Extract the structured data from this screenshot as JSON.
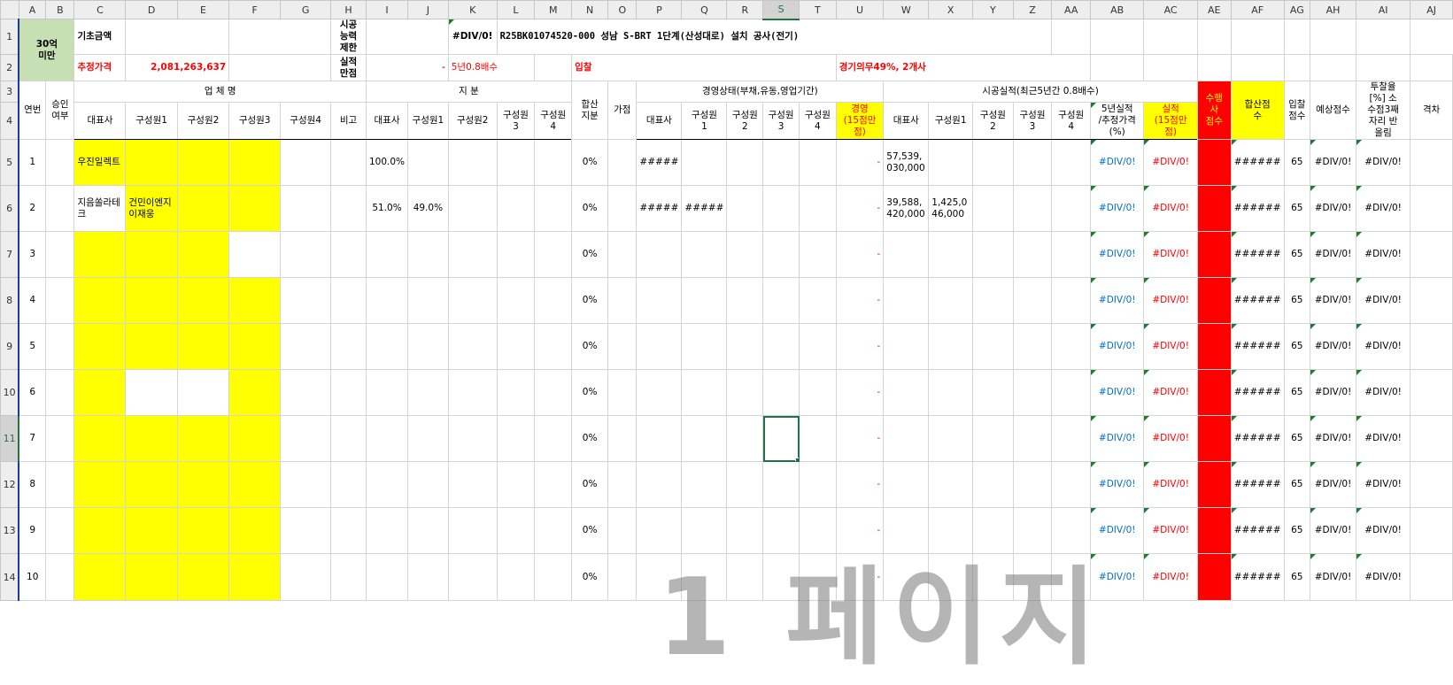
{
  "columns": [
    "A",
    "B",
    "C",
    "D",
    "E",
    "F",
    "G",
    "H",
    "I",
    "J",
    "K",
    "L",
    "M",
    "N",
    "O",
    "P",
    "Q",
    "R",
    "S",
    "T",
    "U",
    "W",
    "X",
    "Y",
    "Z",
    "AA",
    "AB",
    "AC",
    "AE",
    "AF",
    "AG",
    "AH",
    "AI",
    "AJ"
  ],
  "row_numbers": [
    "1",
    "2",
    "3",
    "4",
    "5",
    "6",
    "7",
    "8",
    "9",
    "10",
    "11",
    "12",
    "13",
    "14"
  ],
  "header": {
    "category": "30억\n미만",
    "base_amount_label": "기초금액",
    "estimated_price_label": "추정가격",
    "estimated_price": "2,081,263,637",
    "capacity_label": "시공\n능력\n제한",
    "perf_full_label": "실적\n만점",
    "perf_dash": "-",
    "div_error": "#DIV/0!",
    "five_year_label": "5년0.8배수",
    "project_title": "R25BK01074520-000 성남 S-BRT 1단계(산성대로) 설치 공사(전기)",
    "bid_label": "입찰",
    "regional_label": "경기의무49%, 2개사"
  },
  "groups": {
    "company": "업  체  명",
    "share": "지  분",
    "management": "경영상태(부채,유동,영업기간)",
    "performance": "시공실적(최근5년간 0.8배수)"
  },
  "col_labels": {
    "seq": "연번",
    "approval": "승인\n여부",
    "rep": "대표사",
    "m1": "구성원1",
    "m2": "구성원2",
    "m3": "구성원3",
    "m4": "구성원4",
    "note": "비고",
    "share_rep": "대표사",
    "share_m1": "구성원1",
    "share_m2": "구성원2",
    "share_m3": "구성원\n3",
    "share_m4": "구성원\n4",
    "sum_share": "합산\n지분",
    "bonus": "가점",
    "mg_rep": "대표사",
    "mg_m1": "구성원\n1",
    "mg_m2": "구성원\n2",
    "mg_m3": "구성원\n3",
    "mg_m4": "구성원\n4",
    "mg_score": "경영\n(15점만\n점)",
    "pf_rep": "대표사",
    "pf_m1": "구성원1",
    "pf_m2": "구성원\n2",
    "pf_m3": "구성원\n3",
    "pf_m4": "구성원\n4",
    "pf_ratio": "5년실적\n/추정가격\n(%)",
    "pf_score": "실적\n(15점만\n점)",
    "exec_score": "수행\n사\n점수",
    "sum_score": "합산점\n수",
    "bid_score": "입찰\n점수",
    "expected": "예상점수",
    "bid_rate": "투찰율\n[%] 소\n수점3째\n자리 반\n올림",
    "diff": "격차"
  },
  "rows": [
    {
      "seq": "1",
      "rep": "우진일렉트",
      "m1": "",
      "share_rep": "100.0%",
      "share_m1": "",
      "sum": "0%",
      "mg_rep": "#####",
      "mg_m1": "",
      "mg_score": "-",
      "pf_rep": "57,539,\n030,000",
      "pf_m1": "",
      "ratio": "#DIV/0!",
      "score": "#DIV/0!",
      "sumscore": "######",
      "bid": "65",
      "expected": "#DIV/0!",
      "rate": "#DIV/0!"
    },
    {
      "seq": "2",
      "rep": "지음쏠라테크",
      "m1": "건민이엔지\n이재웅",
      "share_rep": "51.0%",
      "share_m1": "49.0%",
      "sum": "0%",
      "mg_rep": "#####",
      "mg_m1": "#####",
      "mg_score": "-",
      "pf_rep": "39,588,\n420,000",
      "pf_m1": "1,425,0\n46,000",
      "ratio": "#DIV/0!",
      "score": "#DIV/0!",
      "sumscore": "######",
      "bid": "65",
      "expected": "#DIV/0!",
      "rate": "#DIV/0!"
    },
    {
      "seq": "3",
      "rep": "",
      "m1": "",
      "share_rep": "",
      "share_m1": "",
      "sum": "0%",
      "mg_rep": "",
      "mg_m1": "",
      "mg_score": "-",
      "pf_rep": "",
      "pf_m1": "",
      "ratio": "#DIV/0!",
      "score": "#DIV/0!",
      "sumscore": "######",
      "bid": "65",
      "expected": "#DIV/0!",
      "rate": "#DIV/0!"
    },
    {
      "seq": "4",
      "rep": "",
      "m1": "",
      "share_rep": "",
      "share_m1": "",
      "sum": "0%",
      "mg_rep": "",
      "mg_m1": "",
      "mg_score": "-",
      "pf_rep": "",
      "pf_m1": "",
      "ratio": "#DIV/0!",
      "score": "#DIV/0!",
      "sumscore": "######",
      "bid": "65",
      "expected": "#DIV/0!",
      "rate": "#DIV/0!"
    },
    {
      "seq": "5",
      "rep": "",
      "m1": "",
      "share_rep": "",
      "share_m1": "",
      "sum": "0%",
      "mg_rep": "",
      "mg_m1": "",
      "mg_score": "-",
      "pf_rep": "",
      "pf_m1": "",
      "ratio": "#DIV/0!",
      "score": "#DIV/0!",
      "sumscore": "######",
      "bid": "65",
      "expected": "#DIV/0!",
      "rate": "#DIV/0!"
    },
    {
      "seq": "6",
      "rep": "",
      "m1": "",
      "share_rep": "",
      "share_m1": "",
      "sum": "0%",
      "mg_rep": "",
      "mg_m1": "",
      "mg_score": "-",
      "pf_rep": "",
      "pf_m1": "",
      "ratio": "#DIV/0!",
      "score": "#DIV/0!",
      "sumscore": "######",
      "bid": "65",
      "expected": "#DIV/0!",
      "rate": "#DIV/0!"
    },
    {
      "seq": "7",
      "rep": "",
      "m1": "",
      "share_rep": "",
      "share_m1": "",
      "sum": "0%",
      "mg_rep": "",
      "mg_m1": "",
      "mg_score": "-",
      "pf_rep": "",
      "pf_m1": "",
      "ratio": "#DIV/0!",
      "score": "#DIV/0!",
      "sumscore": "######",
      "bid": "65",
      "expected": "#DIV/0!",
      "rate": "#DIV/0!"
    },
    {
      "seq": "8",
      "rep": "",
      "m1": "",
      "share_rep": "",
      "share_m1": "",
      "sum": "0%",
      "mg_rep": "",
      "mg_m1": "",
      "mg_score": "-",
      "pf_rep": "",
      "pf_m1": "",
      "ratio": "#DIV/0!",
      "score": "#DIV/0!",
      "sumscore": "######",
      "bid": "65",
      "expected": "#DIV/0!",
      "rate": "#DIV/0!"
    },
    {
      "seq": "9",
      "rep": "",
      "m1": "",
      "share_rep": "",
      "share_m1": "",
      "sum": "0%",
      "mg_rep": "",
      "mg_m1": "",
      "mg_score": "-",
      "pf_rep": "",
      "pf_m1": "",
      "ratio": "#DIV/0!",
      "score": "#DIV/0!",
      "sumscore": "######",
      "bid": "65",
      "expected": "#DIV/0!",
      "rate": "#DIV/0!"
    },
    {
      "seq": "10",
      "rep": "",
      "m1": "",
      "share_rep": "",
      "share_m1": "",
      "sum": "0%",
      "mg_rep": "",
      "mg_m1": "",
      "mg_score": "-",
      "pf_rep": "",
      "pf_m1": "",
      "ratio": "#DIV/0!",
      "score": "#DIV/0!",
      "sumscore": "######",
      "bid": "65",
      "expected": "#DIV/0!",
      "rate": "#DIV/0!"
    }
  ],
  "yellow_fill": [
    [
      true,
      true,
      true,
      true
    ],
    [
      false,
      true,
      true,
      true
    ],
    [
      true,
      true,
      true,
      false
    ],
    [
      true,
      true,
      true,
      true
    ],
    [
      true,
      true,
      true,
      true
    ],
    [
      true,
      false,
      false,
      true
    ],
    [
      true,
      true,
      true,
      true
    ],
    [
      true,
      true,
      true,
      true
    ],
    [
      true,
      true,
      true,
      true
    ],
    [
      true,
      true,
      true,
      true
    ]
  ],
  "watermark": "1 페이지",
  "colors": {
    "accent": "#217346",
    "highlight": "#ffff00",
    "alert": "#ff0000",
    "header_fill": "#c6e0b4"
  }
}
